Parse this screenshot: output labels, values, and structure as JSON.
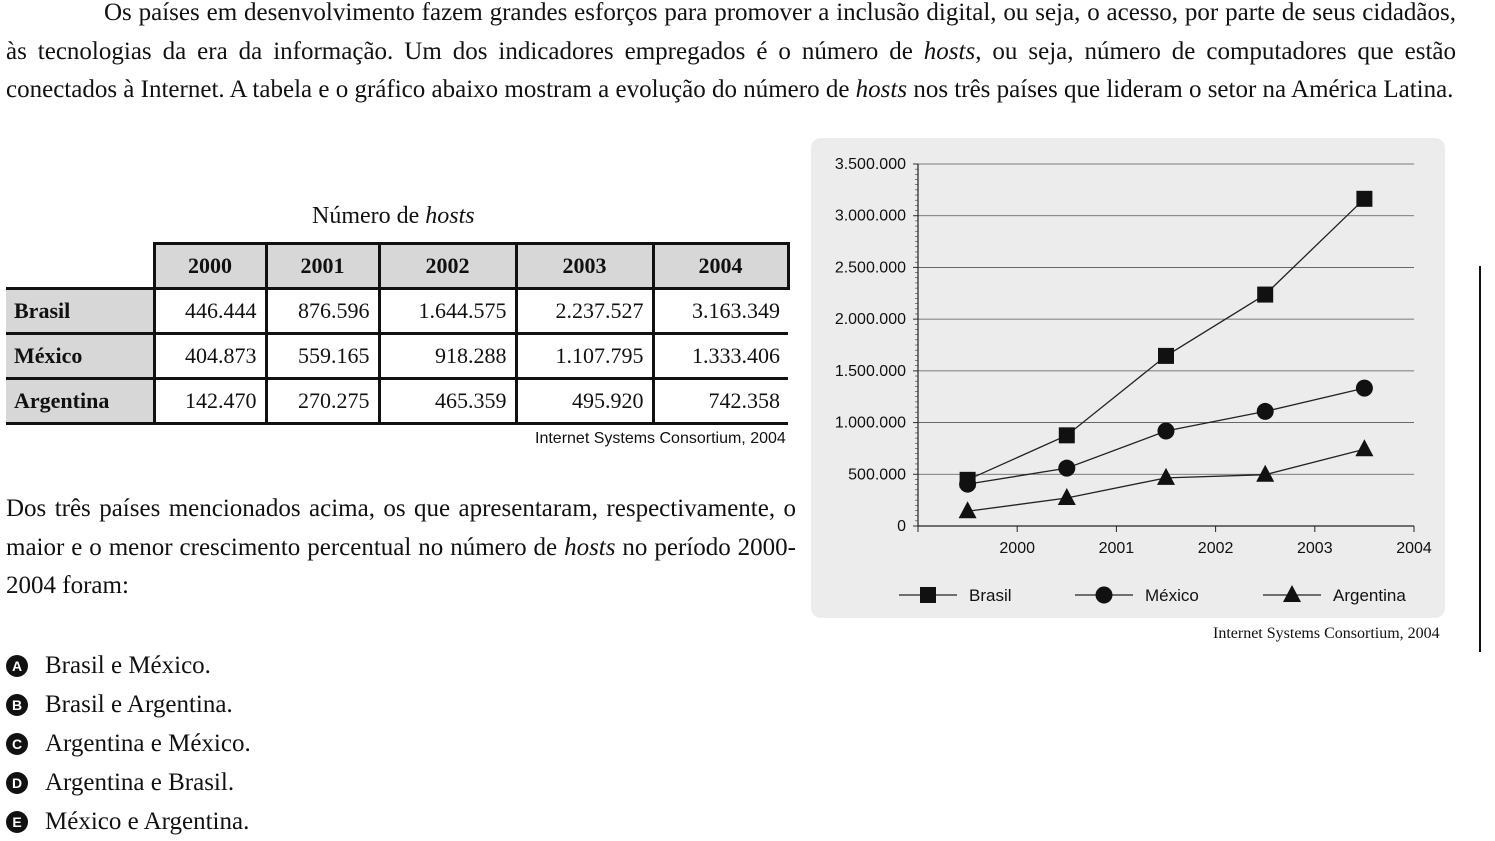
{
  "intro": {
    "part1": "Os países em desenvolvimento fazem grandes esforços para promover a inclusão digital, ou seja, o acesso, por parte de seus cidadãos, às tecnologias da era da informação. Um dos indicadores empregados é o número de ",
    "em1": "hosts",
    "part2": ", ou seja, número de computadores que estão conectados à Internet. A tabela e o gráfico abaixo mostram a evolução do número de ",
    "em2": "hosts",
    "part3": " nos três países que lideram o setor na América Latina."
  },
  "table": {
    "title_pre": "Número de ",
    "title_em": "hosts",
    "years": [
      "2000",
      "2001",
      "2002",
      "2003",
      "2004"
    ],
    "rows": [
      {
        "country": "Brasil",
        "values": [
          "446.444",
          "876.596",
          "1.644.575",
          "2.237.527",
          "3.163.349"
        ]
      },
      {
        "country": "México",
        "values": [
          "404.873",
          "559.165",
          "918.288",
          "1.107.795",
          "1.333.406"
        ]
      },
      {
        "country": "Argentina",
        "values": [
          "142.470",
          "270.275",
          "465.359",
          "495.920",
          "742.358"
        ]
      }
    ],
    "source": "Internet Systems Consortium, 2004"
  },
  "question": {
    "pre": "Dos três países mencionados acima, os que apresentaram, respectivamente, o maior e o menor crescimento percentual no número de ",
    "em": "hosts",
    "post": " no período 2000-2004 foram:"
  },
  "options": [
    {
      "letter": "A",
      "text": "Brasil e México."
    },
    {
      "letter": "B",
      "text": "Brasil e Argentina."
    },
    {
      "letter": "C",
      "text": "Argentina e México."
    },
    {
      "letter": "D",
      "text": "Argentina e Brasil."
    },
    {
      "letter": "E",
      "text": "México e Argentina."
    }
  ],
  "chart_data": {
    "type": "line",
    "x": [
      2000,
      2001,
      2002,
      2003,
      2004
    ],
    "x_tick_labels": [
      "2000",
      "2001",
      "2002",
      "2003",
      "2004"
    ],
    "y_tick_values": [
      0,
      500000,
      1000000,
      1500000,
      2000000,
      2500000,
      3000000,
      3500000
    ],
    "y_tick_labels": [
      "0",
      "500.000",
      "1.000.000",
      "1.500.000",
      "2.000.000",
      "2.500.000",
      "3.000.000",
      "3.500.000"
    ],
    "ylim": [
      0,
      3500000
    ],
    "grid": true,
    "legend_position": "bottom",
    "series": [
      {
        "name": "Brasil",
        "marker": "square",
        "values": [
          446444,
          876596,
          1644575,
          2237527,
          3163349
        ]
      },
      {
        "name": "México",
        "marker": "circle",
        "values": [
          404873,
          559165,
          918288,
          1107795,
          1333406
        ]
      },
      {
        "name": "Argentina",
        "marker": "triangle",
        "values": [
          142470,
          270275,
          465359,
          495920,
          742358
        ]
      }
    ],
    "source": "Internet Systems Consortium, 2004"
  }
}
